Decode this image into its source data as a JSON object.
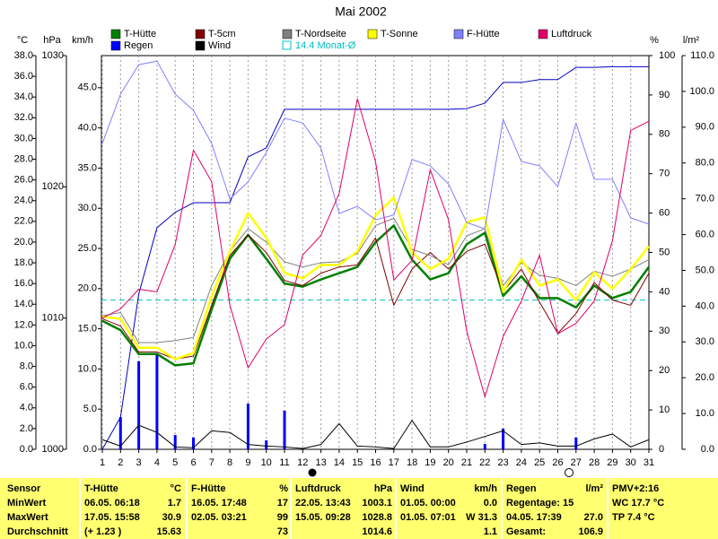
{
  "chart_data": {
    "type": "line",
    "title": "Mai 2002",
    "x": [
      1,
      2,
      3,
      4,
      5,
      6,
      7,
      8,
      9,
      10,
      11,
      12,
      13,
      14,
      15,
      16,
      17,
      18,
      19,
      20,
      21,
      22,
      23,
      24,
      25,
      26,
      27,
      28,
      29,
      30,
      31
    ],
    "xlim": [
      1,
      31
    ],
    "axes": {
      "temp": {
        "label": "°C",
        "lim": [
          0,
          38
        ],
        "ticks": [
          {
            "value": 0,
            "label": "0.0"
          },
          {
            "value": 2,
            "label": "2.0"
          },
          {
            "value": 4,
            "label": "4.0"
          },
          {
            "value": 6,
            "label": "6.0"
          },
          {
            "value": 8,
            "label": "8.0"
          },
          {
            "value": 10,
            "label": "10.0"
          },
          {
            "value": 12,
            "label": "12.0"
          },
          {
            "value": 14,
            "label": "14.0"
          },
          {
            "value": 16,
            "label": "16.0"
          },
          {
            "value": 18,
            "label": "18.0"
          },
          {
            "value": 20,
            "label": "20.0"
          },
          {
            "value": 22,
            "label": "22.0"
          },
          {
            "value": 24,
            "label": "24.0"
          },
          {
            "value": 26,
            "label": "26.0"
          },
          {
            "value": 28,
            "label": "28.0"
          },
          {
            "value": 30,
            "label": "30.0"
          },
          {
            "value": 32,
            "label": "32.0"
          },
          {
            "value": 34,
            "label": "34.0"
          },
          {
            "value": 36,
            "label": "36.0"
          },
          {
            "value": 38,
            "label": "38.0"
          }
        ]
      },
      "pressure": {
        "label": "hPa",
        "lim": [
          1000,
          1030
        ],
        "ticks": [
          1000,
          1010,
          1020,
          1030
        ]
      },
      "wind": {
        "label": "km/h",
        "lim": [
          0,
          49
        ],
        "ticks": [
          {
            "value": 0,
            "label": "0.0"
          },
          {
            "value": 5,
            "label": "5.0"
          },
          {
            "value": 10,
            "label": "10.0"
          },
          {
            "value": 15,
            "label": "15.0"
          },
          {
            "value": 20,
            "label": "20.0"
          },
          {
            "value": 25,
            "label": "25.0"
          },
          {
            "value": 30,
            "label": "30.0"
          },
          {
            "value": 35,
            "label": "35.0"
          },
          {
            "value": 40,
            "label": "40.0"
          },
          {
            "value": 45,
            "label": "45.0"
          }
        ]
      },
      "humidity": {
        "label": "%",
        "lim": [
          0,
          100
        ],
        "ticks": [
          0,
          10,
          20,
          30,
          40,
          50,
          60,
          70,
          80,
          90,
          100
        ]
      },
      "rain": {
        "label": "l/m²",
        "lim": [
          0,
          110
        ],
        "ticks": [
          {
            "value": 0,
            "label": "0.0"
          },
          {
            "value": 10,
            "label": "10.0"
          },
          {
            "value": 20,
            "label": "20.0"
          },
          {
            "value": 30,
            "label": "30.0"
          },
          {
            "value": 40,
            "label": "40.0"
          },
          {
            "value": 50,
            "label": "50.0"
          },
          {
            "value": 60,
            "label": "60.0"
          },
          {
            "value": 70,
            "label": "70.0"
          },
          {
            "value": 80,
            "label": "80.0"
          },
          {
            "value": 90,
            "label": "90.0"
          },
          {
            "value": 100,
            "label": "100.0"
          },
          {
            "value": 110,
            "label": "110.0"
          }
        ]
      }
    },
    "rain_total": {
      "color": "#0000c0",
      "axis": "rain",
      "values": [
        0,
        9,
        43.4,
        61.9,
        66.2,
        68.9,
        68.9,
        68.9,
        81.7,
        84.2,
        95,
        95,
        95,
        95,
        95,
        95,
        95,
        95,
        95,
        95,
        95.2,
        96.7,
        102.5,
        102.5,
        103.3,
        103.3,
        106.7,
        106.7,
        106.9,
        106.9,
        106.9
      ]
    },
    "series": [
      {
        "name": "T-Hütte",
        "color": "#008000",
        "axis": "temp",
        "width": 2.5,
        "values": [
          12.4,
          11.5,
          9.2,
          9.2,
          8.1,
          8.3,
          13.5,
          18.4,
          20.7,
          18.4,
          16,
          15.7,
          16.4,
          17,
          17.6,
          20,
          21.6,
          18.3,
          16.4,
          17,
          19.8,
          20.9,
          14.8,
          16.7,
          14.6,
          14.6,
          13.7,
          15.8,
          14.6,
          15.2,
          17.6
        ]
      },
      {
        "name": "T-5cm",
        "color": "#800000",
        "axis": "temp",
        "width": 1,
        "values": [
          12.6,
          11.9,
          9.4,
          9.4,
          8.7,
          9,
          13.9,
          18.7,
          20.7,
          19,
          16.3,
          15.8,
          17,
          17.6,
          17.8,
          20.4,
          13.9,
          17.4,
          19,
          17.4,
          19.1,
          19.8,
          15.2,
          17.4,
          14.2,
          11.2,
          13.1,
          16.1,
          14.4,
          13.9,
          17
        ]
      },
      {
        "name": "T-Nordseite",
        "color": "#808080",
        "axis": "temp",
        "width": 1,
        "values": [
          12.9,
          13.2,
          10.3,
          10.3,
          10.5,
          10.8,
          15.8,
          19.1,
          21.3,
          20,
          18.1,
          17.6,
          18,
          18.1,
          18.9,
          21.6,
          22.3,
          19.3,
          18.7,
          17.8,
          20.6,
          21.3,
          15.8,
          18,
          16.8,
          16.5,
          15.8,
          17.2,
          16.7,
          17.4,
          18.3
        ]
      },
      {
        "name": "T-Sonne",
        "color": "#ffff00",
        "axis": "temp",
        "width": 2.5,
        "values": [
          12.8,
          12.6,
          9.8,
          9.8,
          8.7,
          9.3,
          14.8,
          19.1,
          22.8,
          20.4,
          17,
          16.5,
          17.8,
          17.8,
          19.1,
          22.6,
          24.3,
          19,
          17.4,
          18.4,
          21.9,
          22.4,
          15.2,
          18.3,
          15.8,
          16.4,
          14.4,
          17.1,
          15.5,
          17.4,
          19.6
        ]
      },
      {
        "name": "F-Hütte",
        "color": "#8080ff",
        "axis": "humidity",
        "width": 1,
        "values": [
          77.7,
          90.2,
          97.7,
          98.6,
          90.2,
          86.1,
          77.7,
          63.6,
          67.9,
          75.4,
          84.1,
          82.9,
          76.5,
          59.9,
          61.7,
          58.3,
          59.5,
          73.6,
          72,
          67.4,
          57.6,
          56,
          83.8,
          73.1,
          72,
          66.7,
          82.9,
          68.6,
          68.6,
          58.8,
          57.2
        ]
      },
      {
        "name": "Luftdruck",
        "color": "#e0006a",
        "axis": "pressure",
        "width": 1,
        "values": [
          1010,
          1010.7,
          1012.2,
          1012,
          1015.6,
          1022.8,
          1020.4,
          1011,
          1006.2,
          1008.4,
          1009.5,
          1014.8,
          1016.3,
          1019.5,
          1026.7,
          1021.9,
          1012.9,
          1014.4,
          1021.3,
          1017.5,
          1009,
          1004,
          1008.6,
          1011.3,
          1014.8,
          1008.8,
          1009.6,
          1011.3,
          1015.9,
          1024.3,
          1025
        ]
      },
      {
        "name": "Regen",
        "color": "#0000ff",
        "axis": "rain",
        "type": "bar",
        "values": [
          0,
          9,
          24.6,
          26.6,
          4,
          3.3,
          0,
          0,
          12.8,
          2.5,
          10.8,
          0,
          0,
          0,
          0,
          0,
          0,
          0,
          0,
          0,
          0,
          1.5,
          5.8,
          0,
          0,
          0,
          3.3,
          0,
          0,
          0,
          0
        ]
      },
      {
        "name": "Wind",
        "color": "#000000",
        "axis": "wind",
        "width": 1,
        "values": [
          1.2,
          0.4,
          3,
          2.1,
          0.3,
          0.2,
          2.3,
          2.1,
          0.6,
          0.4,
          0.3,
          0.1,
          0.6,
          3.2,
          0.4,
          0.3,
          0.1,
          3.6,
          0.3,
          0.3,
          0.9,
          1.6,
          2.3,
          0.6,
          0.8,
          0.4,
          0.4,
          1.3,
          1.9,
          0.3,
          1.2
        ]
      }
    ],
    "average_line": {
      "label": "14.4 Monat-Ø",
      "value": 14.4,
      "color": "#00c0c0",
      "axis": "temp"
    }
  },
  "table": {
    "row_labels": [
      "Sensor",
      "MinWert",
      "MaxWert",
      "Durchschnitt"
    ],
    "blocks": [
      {
        "title": "T-Hütte",
        "unit": "°C",
        "rows": [
          {
            "left": "06.05. 06:18",
            "right": "1.7"
          },
          {
            "left": "17.05. 15:58",
            "right": "30.9"
          },
          {
            "left": "(+ 1.23 )",
            "right": "15.63"
          }
        ]
      },
      {
        "title": "F-Hütte",
        "unit": "%",
        "rows": [
          {
            "left": "16.05. 17:48",
            "right": "17"
          },
          {
            "left": "02.05. 03:21",
            "right": "99"
          },
          {
            "right": "73"
          }
        ]
      },
      {
        "title": "Luftdruck",
        "unit": "hPa",
        "rows": [
          {
            "left": "22.05. 13:43",
            "right": "1003.1"
          },
          {
            "left": "15.05. 09:28",
            "right": "1028.8"
          },
          {
            "right": "1014.6"
          }
        ]
      },
      {
        "title": "Wind",
        "unit": "km/h",
        "rows": [
          {
            "left": "01.05. 00:00",
            "right": "0.0"
          },
          {
            "left": "01.05. 07:01",
            "right": "W 31.3"
          },
          {
            "right": "1.1"
          }
        ]
      },
      {
        "title": "Regen",
        "unit": "l/m²",
        "rows": [
          {
            "left": "Regentage: 15"
          },
          {
            "left": "04.05. 17:39",
            "right": "27.0"
          },
          {
            "left": "Gesamt:",
            "right": "106.9"
          }
        ]
      },
      {
        "title": "PMV+2:16",
        "rows": [
          {
            "left": "WC 17.7 °C"
          },
          {
            "left": "TP 7.4 °C"
          }
        ]
      }
    ]
  }
}
